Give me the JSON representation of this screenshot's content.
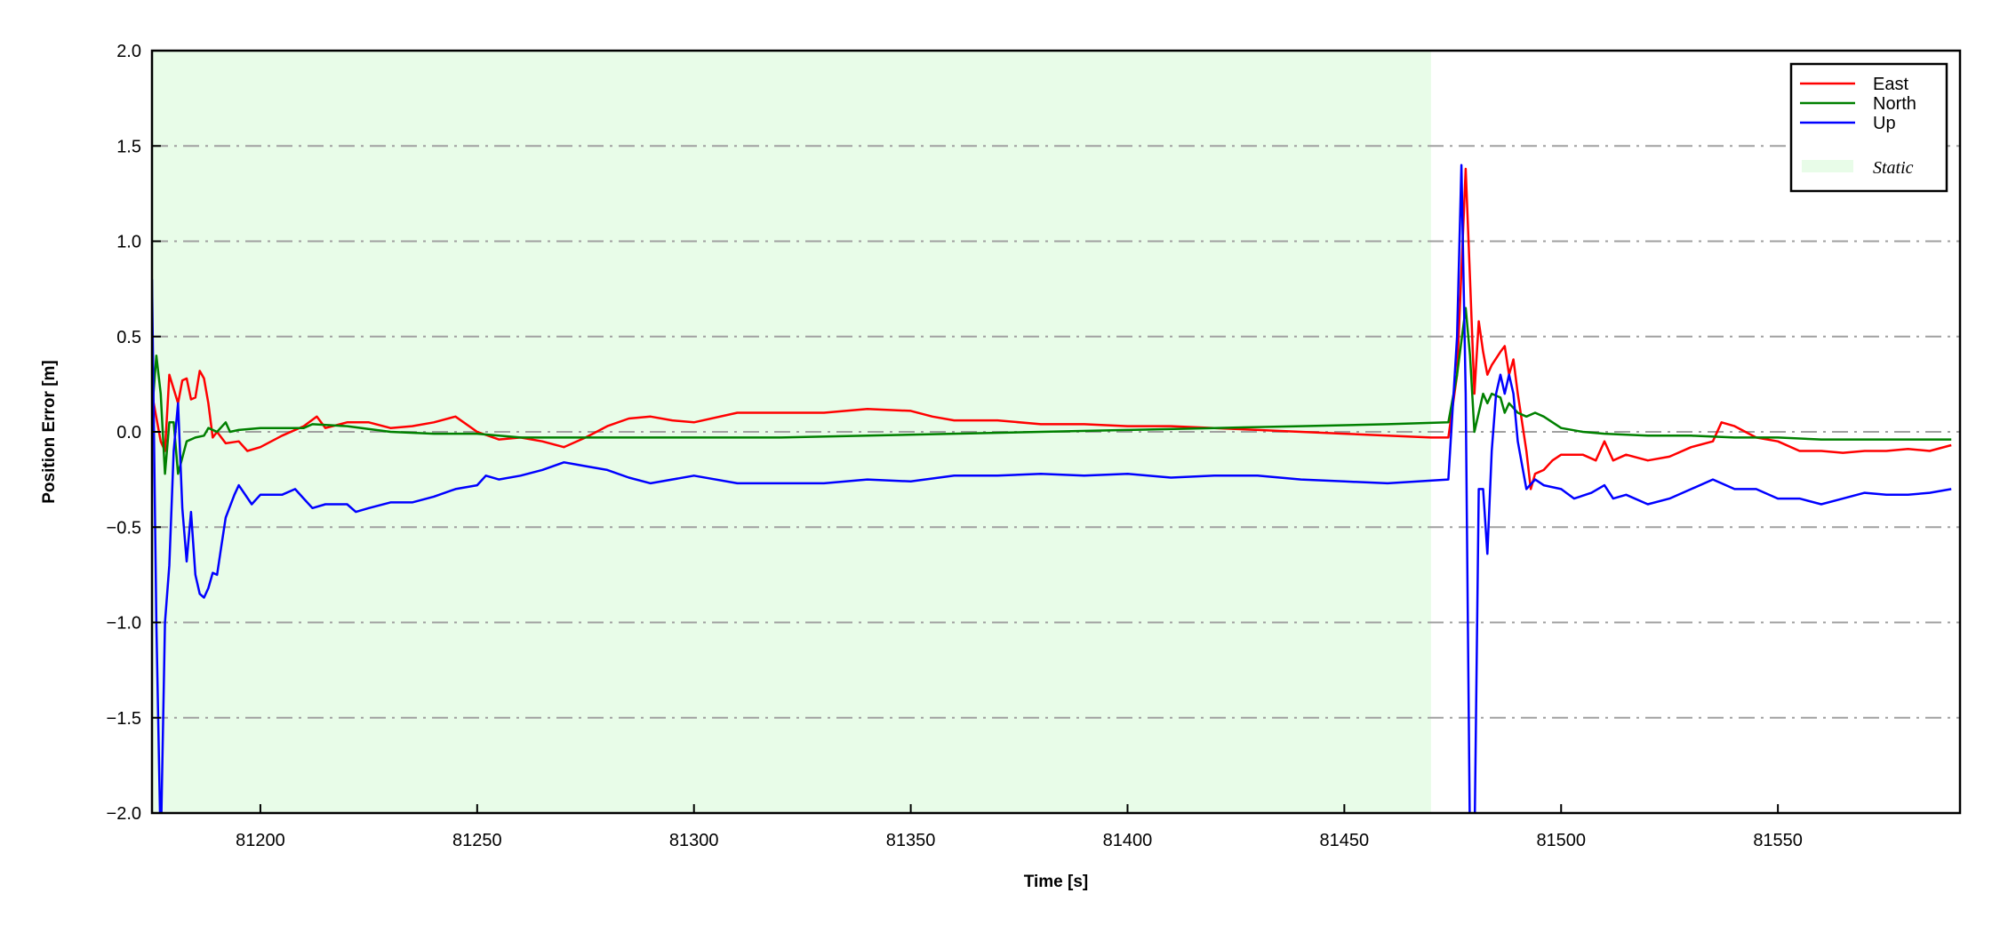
{
  "chart_data": {
    "type": "line",
    "title": "",
    "xlabel": "Time [s]",
    "ylabel": "Position Error [m]",
    "xlim": [
      81175,
      81592
    ],
    "ylim": [
      -2.0,
      2.0
    ],
    "xticks": [
      81200,
      81250,
      81300,
      81350,
      81400,
      81450,
      81500,
      81550
    ],
    "yticks": [
      2.0,
      1.5,
      1.0,
      0.5,
      0.0,
      -0.5,
      -1.0,
      -1.5,
      -2.0
    ],
    "ytick_labels": [
      "2.0",
      "1.5",
      "1.0",
      "0.5",
      "0.0",
      "−0.5",
      "−1.0",
      "−1.5",
      "−2.0"
    ],
    "grid": "horizontal dash-dot",
    "legend_placement": "top-right",
    "shaded_region": {
      "name": "Static",
      "x": [
        81175,
        81470
      ],
      "color": "#e8fce8"
    },
    "series": [
      {
        "name": "East",
        "color": "#ff0000",
        "points": [
          [
            81175,
            0.2
          ],
          [
            81177,
            -0.05
          ],
          [
            81178,
            -0.1
          ],
          [
            81179,
            0.3
          ],
          [
            81181,
            0.15
          ],
          [
            81182,
            0.27
          ],
          [
            81183,
            0.28
          ],
          [
            81184,
            0.17
          ],
          [
            81185,
            0.18
          ],
          [
            81186,
            0.32
          ],
          [
            81187,
            0.28
          ],
          [
            81188,
            0.15
          ],
          [
            81189,
            -0.03
          ],
          [
            81190,
            0
          ],
          [
            81192,
            -0.06
          ],
          [
            81195,
            -0.05
          ],
          [
            81197,
            -0.1
          ],
          [
            81200,
            -0.08
          ],
          [
            81205,
            -0.02
          ],
          [
            81210,
            0.03
          ],
          [
            81213,
            0.08
          ],
          [
            81215,
            0.02
          ],
          [
            81220,
            0.05
          ],
          [
            81225,
            0.05
          ],
          [
            81230,
            0.02
          ],
          [
            81235,
            0.03
          ],
          [
            81240,
            0.05
          ],
          [
            81245,
            0.08
          ],
          [
            81250,
            0.0
          ],
          [
            81255,
            -0.04
          ],
          [
            81260,
            -0.03
          ],
          [
            81265,
            -0.05
          ],
          [
            81270,
            -0.08
          ],
          [
            81275,
            -0.03
          ],
          [
            81280,
            0.03
          ],
          [
            81285,
            0.07
          ],
          [
            81290,
            0.08
          ],
          [
            81295,
            0.06
          ],
          [
            81300,
            0.05
          ],
          [
            81310,
            0.1
          ],
          [
            81320,
            0.1
          ],
          [
            81330,
            0.1
          ],
          [
            81340,
            0.12
          ],
          [
            81350,
            0.11
          ],
          [
            81355,
            0.08
          ],
          [
            81360,
            0.06
          ],
          [
            81370,
            0.06
          ],
          [
            81380,
            0.04
          ],
          [
            81390,
            0.04
          ],
          [
            81400,
            0.03
          ],
          [
            81410,
            0.03
          ],
          [
            81420,
            0.02
          ],
          [
            81430,
            0.01
          ],
          [
            81440,
            0.0
          ],
          [
            81450,
            -0.01
          ],
          [
            81460,
            -0.02
          ],
          [
            81470,
            -0.03
          ],
          [
            81474,
            -0.03
          ],
          [
            81476,
            0.3
          ],
          [
            81478,
            1.38
          ],
          [
            81479,
            0.8
          ],
          [
            81480,
            0.2
          ],
          [
            81481,
            0.58
          ],
          [
            81482,
            0.42
          ],
          [
            81483,
            0.3
          ],
          [
            81484,
            0.35
          ],
          [
            81486,
            0.42
          ],
          [
            81487,
            0.45
          ],
          [
            81488,
            0.3
          ],
          [
            81489,
            0.38
          ],
          [
            81490,
            0.2
          ],
          [
            81492,
            -0.1
          ],
          [
            81493,
            -0.3
          ],
          [
            81494,
            -0.22
          ],
          [
            81496,
            -0.2
          ],
          [
            81498,
            -0.15
          ],
          [
            81500,
            -0.12
          ],
          [
            81505,
            -0.12
          ],
          [
            81508,
            -0.15
          ],
          [
            81510,
            -0.05
          ],
          [
            81512,
            -0.15
          ],
          [
            81515,
            -0.12
          ],
          [
            81520,
            -0.15
          ],
          [
            81525,
            -0.13
          ],
          [
            81530,
            -0.08
          ],
          [
            81535,
            -0.05
          ],
          [
            81537,
            0.05
          ],
          [
            81540,
            0.03
          ],
          [
            81545,
            -0.03
          ],
          [
            81550,
            -0.05
          ],
          [
            81555,
            -0.1
          ],
          [
            81560,
            -0.1
          ],
          [
            81565,
            -0.11
          ],
          [
            81570,
            -0.1
          ],
          [
            81575,
            -0.1
          ],
          [
            81580,
            -0.09
          ],
          [
            81585,
            -0.1
          ],
          [
            81590,
            -0.07
          ]
        ]
      },
      {
        "name": "North",
        "color": "#008000",
        "points": [
          [
            81175,
            0.1
          ],
          [
            81176,
            0.4
          ],
          [
            81177,
            0.2
          ],
          [
            81178,
            -0.22
          ],
          [
            81179,
            0.05
          ],
          [
            81180,
            0.05
          ],
          [
            81181,
            -0.22
          ],
          [
            81183,
            -0.05
          ],
          [
            81185,
            -0.03
          ],
          [
            81187,
            -0.02
          ],
          [
            81188,
            0.02
          ],
          [
            81190,
            0.0
          ],
          [
            81192,
            0.05
          ],
          [
            81193,
            0.0
          ],
          [
            81195,
            0.01
          ],
          [
            81200,
            0.02
          ],
          [
            81210,
            0.02
          ],
          [
            81212,
            0.04
          ],
          [
            81220,
            0.03
          ],
          [
            81230,
            0.0
          ],
          [
            81240,
            -0.01
          ],
          [
            81250,
            -0.01
          ],
          [
            81260,
            -0.03
          ],
          [
            81270,
            -0.03
          ],
          [
            81280,
            -0.03
          ],
          [
            81300,
            -0.03
          ],
          [
            81320,
            -0.03
          ],
          [
            81340,
            -0.02
          ],
          [
            81360,
            -0.01
          ],
          [
            81380,
            0.0
          ],
          [
            81400,
            0.01
          ],
          [
            81420,
            0.02
          ],
          [
            81440,
            0.03
          ],
          [
            81460,
            0.04
          ],
          [
            81474,
            0.05
          ],
          [
            81476,
            0.3
          ],
          [
            81478,
            0.65
          ],
          [
            81479,
            0.4
          ],
          [
            81480,
            0.0
          ],
          [
            81481,
            0.1
          ],
          [
            81482,
            0.2
          ],
          [
            81483,
            0.15
          ],
          [
            81484,
            0.2
          ],
          [
            81486,
            0.18
          ],
          [
            81487,
            0.1
          ],
          [
            81488,
            0.15
          ],
          [
            81490,
            0.1
          ],
          [
            81492,
            0.08
          ],
          [
            81494,
            0.1
          ],
          [
            81496,
            0.08
          ],
          [
            81500,
            0.02
          ],
          [
            81505,
            0.0
          ],
          [
            81510,
            -0.01
          ],
          [
            81520,
            -0.02
          ],
          [
            81530,
            -0.02
          ],
          [
            81540,
            -0.03
          ],
          [
            81550,
            -0.03
          ],
          [
            81560,
            -0.04
          ],
          [
            81570,
            -0.04
          ],
          [
            81580,
            -0.04
          ],
          [
            81590,
            -0.04
          ]
        ]
      },
      {
        "name": "Up",
        "color": "#0000ff",
        "points": [
          [
            81175,
            0.8
          ],
          [
            81176,
            -1.0
          ],
          [
            81177,
            -2.2
          ],
          [
            81178,
            -1.0
          ],
          [
            81179,
            -0.7
          ],
          [
            81180,
            -0.1
          ],
          [
            81181,
            0.15
          ],
          [
            81182,
            -0.4
          ],
          [
            81183,
            -0.68
          ],
          [
            81184,
            -0.42
          ],
          [
            81185,
            -0.75
          ],
          [
            81186,
            -0.85
          ],
          [
            81187,
            -0.87
          ],
          [
            81188,
            -0.82
          ],
          [
            81189,
            -0.74
          ],
          [
            81190,
            -0.75
          ],
          [
            81191,
            -0.6
          ],
          [
            81192,
            -0.45
          ],
          [
            81194,
            -0.33
          ],
          [
            81195,
            -0.28
          ],
          [
            81198,
            -0.38
          ],
          [
            81200,
            -0.33
          ],
          [
            81205,
            -0.33
          ],
          [
            81208,
            -0.3
          ],
          [
            81210,
            -0.35
          ],
          [
            81212,
            -0.4
          ],
          [
            81215,
            -0.38
          ],
          [
            81220,
            -0.38
          ],
          [
            81222,
            -0.42
          ],
          [
            81225,
            -0.4
          ],
          [
            81230,
            -0.37
          ],
          [
            81235,
            -0.37
          ],
          [
            81240,
            -0.34
          ],
          [
            81245,
            -0.3
          ],
          [
            81250,
            -0.28
          ],
          [
            81252,
            -0.23
          ],
          [
            81255,
            -0.25
          ],
          [
            81260,
            -0.23
          ],
          [
            81265,
            -0.2
          ],
          [
            81270,
            -0.16
          ],
          [
            81275,
            -0.18
          ],
          [
            81280,
            -0.2
          ],
          [
            81285,
            -0.24
          ],
          [
            81290,
            -0.27
          ],
          [
            81300,
            -0.23
          ],
          [
            81310,
            -0.27
          ],
          [
            81320,
            -0.27
          ],
          [
            81330,
            -0.27
          ],
          [
            81340,
            -0.25
          ],
          [
            81350,
            -0.26
          ],
          [
            81360,
            -0.23
          ],
          [
            81370,
            -0.23
          ],
          [
            81380,
            -0.22
          ],
          [
            81390,
            -0.23
          ],
          [
            81400,
            -0.22
          ],
          [
            81410,
            -0.24
          ],
          [
            81420,
            -0.23
          ],
          [
            81430,
            -0.23
          ],
          [
            81440,
            -0.25
          ],
          [
            81450,
            -0.26
          ],
          [
            81460,
            -0.27
          ],
          [
            81474,
            -0.25
          ],
          [
            81476,
            0.5
          ],
          [
            81477,
            1.4
          ],
          [
            81478,
            0.2
          ],
          [
            81479,
            -2.2
          ],
          [
            81480,
            -2.2
          ],
          [
            81481,
            -0.3
          ],
          [
            81482,
            -0.3
          ],
          [
            81483,
            -0.64
          ],
          [
            81484,
            -0.1
          ],
          [
            81485,
            0.2
          ],
          [
            81486,
            0.3
          ],
          [
            81487,
            0.2
          ],
          [
            81488,
            0.3
          ],
          [
            81489,
            0.2
          ],
          [
            81490,
            -0.05
          ],
          [
            81492,
            -0.3
          ],
          [
            81494,
            -0.25
          ],
          [
            81496,
            -0.28
          ],
          [
            81500,
            -0.3
          ],
          [
            81503,
            -0.35
          ],
          [
            81507,
            -0.32
          ],
          [
            81510,
            -0.28
          ],
          [
            81512,
            -0.35
          ],
          [
            81515,
            -0.33
          ],
          [
            81520,
            -0.38
          ],
          [
            81525,
            -0.35
          ],
          [
            81530,
            -0.3
          ],
          [
            81535,
            -0.25
          ],
          [
            81540,
            -0.3
          ],
          [
            81545,
            -0.3
          ],
          [
            81550,
            -0.35
          ],
          [
            81555,
            -0.35
          ],
          [
            81560,
            -0.38
          ],
          [
            81565,
            -0.35
          ],
          [
            81570,
            -0.32
          ],
          [
            81575,
            -0.33
          ],
          [
            81580,
            -0.33
          ],
          [
            81585,
            -0.32
          ],
          [
            81590,
            -0.3
          ]
        ]
      }
    ],
    "legend": {
      "entries": [
        "East",
        "North",
        "Up"
      ],
      "shaded_label": "Static"
    }
  }
}
